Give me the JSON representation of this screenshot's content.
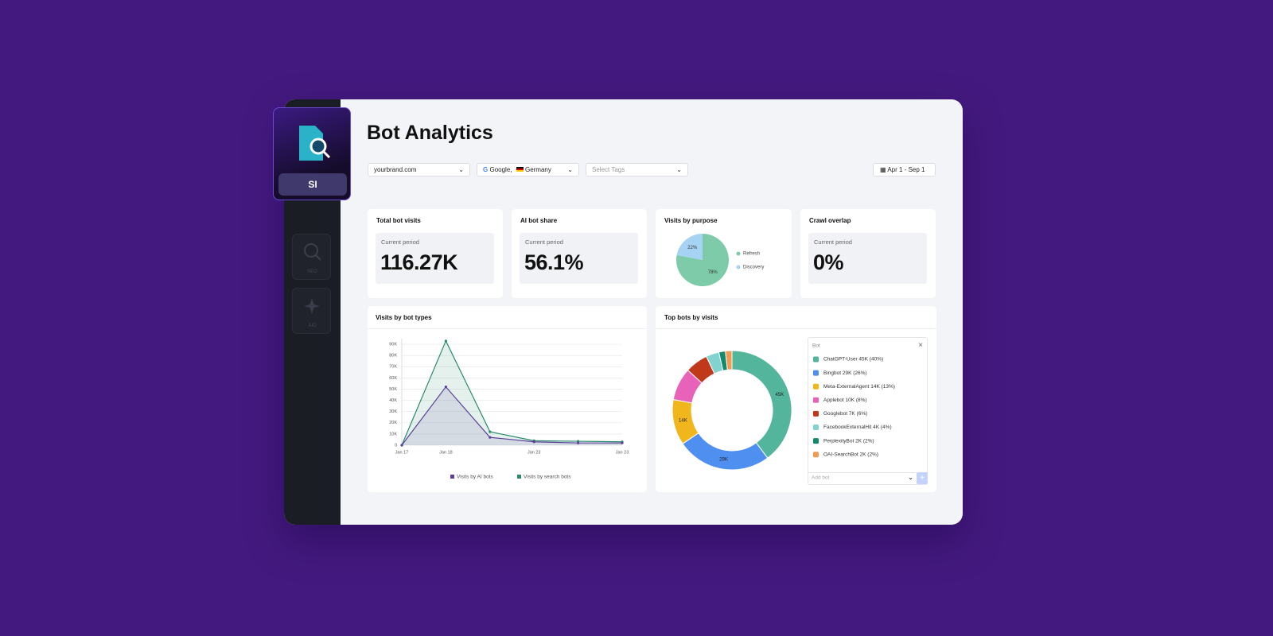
{
  "sidebar": {
    "app_label": "SI",
    "items": [
      "SEO",
      "AIO"
    ]
  },
  "header": {
    "title": "Bot Analytics"
  },
  "filters": {
    "domain": "yourbrand.com",
    "engine": "Google,",
    "country": "Germany",
    "tags_placeholder": "Select Tags",
    "date_range": "Apr 1 - Sep 1"
  },
  "cards": [
    {
      "title": "Total bot visits",
      "caption": "Current period",
      "value": "116.27K"
    },
    {
      "title": "AI bot share",
      "caption": "Current period",
      "value": "56.1%"
    },
    {
      "title": "Crawl overlap",
      "caption": "Current period",
      "value": "0%"
    }
  ],
  "chart_data": [
    {
      "type": "pie",
      "title": "Visits by purpose",
      "categories": [
        "Refresh",
        "Discovery"
      ],
      "values": [
        78,
        22
      ],
      "value_labels": [
        "78%",
        "22%"
      ],
      "colors": [
        "#7dcba8",
        "#a6d3f3"
      ]
    },
    {
      "type": "line",
      "title": "Visits by bot types",
      "categories": [
        "Jan 17",
        "Jan 18",
        null,
        "Jan 23",
        null,
        "Jan 23"
      ],
      "series": [
        {
          "name": "Visits by AI bots",
          "color": "#5b3f9a",
          "values": [
            0,
            52000,
            7000,
            3000,
            2000,
            2000
          ]
        },
        {
          "name": "Visits by search bots",
          "color": "#2b8a6c",
          "values": [
            0,
            93000,
            12000,
            4000,
            3500,
            3000
          ]
        }
      ],
      "ylim": [
        0,
        95000
      ],
      "yticks": [
        0,
        {
          "value": 10000,
          "label": "10K"
        },
        {
          "value": 20000,
          "label": "20K"
        },
        {
          "value": 30000,
          "label": "30K"
        },
        {
          "value": 40000,
          "label": "40K"
        },
        {
          "value": 50000,
          "label": "50K"
        },
        {
          "value": 60000,
          "label": "60K"
        },
        {
          "value": 70000,
          "label": "70K"
        },
        {
          "value": 80000,
          "label": "80K"
        },
        {
          "value": 90000,
          "label": "90K"
        }
      ],
      "grid": true
    },
    {
      "type": "donut",
      "title": "Top bots by visits",
      "legend_title": "Bot",
      "input_placeholder": "Add bot",
      "categories": [
        "ChatGPT-User 45K (40%)",
        "Bingbot 29K (26%)",
        "Meta-ExternalAgent 14K (13%)",
        "Applebot 10K (8%)",
        "Googlebot 7K (6%)",
        "FacebookExternalHit 4K (4%)",
        "PerplexityBot 2K (2%)",
        "OAI-SearchBot 2K (2%)"
      ],
      "values": [
        45000,
        29000,
        14000,
        10000,
        7000,
        4000,
        2000,
        2000
      ],
      "value_labels": [
        "45K",
        "29K",
        "14K",
        null,
        null,
        null,
        null,
        null
      ],
      "colors": [
        "#52b59c",
        "#4f8ff0",
        "#f2b61d",
        "#e862b9",
        "#c0391b",
        "#82d2d0",
        "#128a6b",
        "#f09a52"
      ]
    }
  ]
}
